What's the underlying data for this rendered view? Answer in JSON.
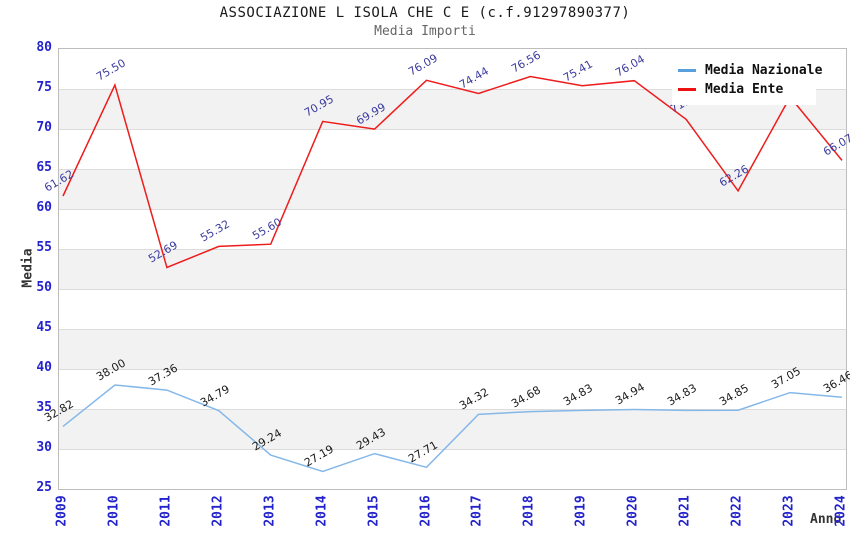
{
  "chart_data": {
    "type": "line",
    "title": "ASSOCIAZIONE L ISOLA CHE C E (c.f.91297890377)",
    "subtitle": "Media Importi",
    "xlabel": "Anno",
    "ylabel": "Media",
    "ylim": [
      25,
      80
    ],
    "ytick_step": 5,
    "grid": "horizontal-bands-alternating",
    "legend_position": "top-right-overlay",
    "categories": [
      "2009",
      "2010",
      "2011",
      "2012",
      "2013",
      "2014",
      "2015",
      "2016",
      "2017",
      "2018",
      "2019",
      "2020",
      "2021",
      "2022",
      "2023",
      "2024"
    ],
    "series": [
      {
        "name": "Media Nazionale",
        "color": "#85b8e8",
        "swatch_color": "#58a0dc",
        "label_color": "#1a1a1a",
        "values": [
          32.82,
          38.0,
          37.36,
          34.79,
          29.24,
          27.19,
          29.43,
          27.71,
          34.32,
          34.68,
          34.83,
          34.94,
          34.83,
          34.85,
          37.05,
          36.46
        ],
        "point_labels": [
          "32.82",
          "38.00",
          "37.36",
          "34.79",
          "29.24",
          "27.19",
          "29.43",
          "27.71",
          "34.32",
          "34.68",
          "34.83",
          "34.94",
          "34.83",
          "34.85",
          "37.05",
          "36.46"
        ]
      },
      {
        "name": "Media Ente",
        "color": "#ee1c1c",
        "swatch_color": "#ee1111",
        "label_color": "#3b3b9e",
        "values": [
          61.62,
          75.5,
          52.69,
          55.32,
          55.6,
          70.95,
          69.99,
          76.09,
          74.44,
          76.56,
          75.41,
          76.04,
          71.2,
          62.26,
          74.0,
          66.07
        ],
        "point_labels": [
          "61.62",
          "75.50",
          "52.69",
          "55.32",
          "55.60",
          "70.95",
          "69.99",
          "76.09",
          "74.44",
          "76.56",
          "75.41",
          "76.04",
          "71.2",
          "62.26",
          "",
          "66.07"
        ]
      }
    ],
    "style": {
      "tick_color": "#2323cc",
      "band_color": "#f2f2f2",
      "gridline_color": "#dcdcdc",
      "title_color": "#1a1a1a",
      "subtitle_color": "#666666"
    }
  }
}
